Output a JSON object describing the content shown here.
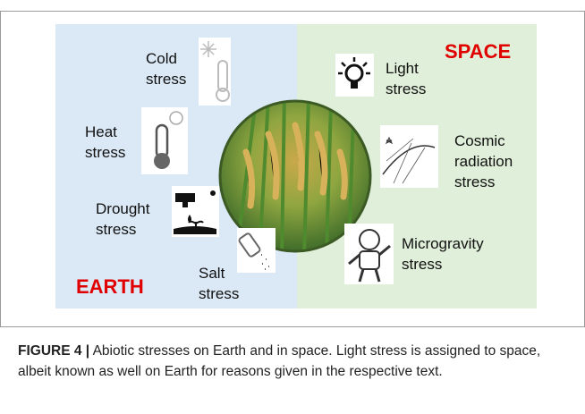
{
  "figure": {
    "earth": {
      "title": "EARTH",
      "stresses": [
        {
          "lines": [
            "Cold",
            "stress"
          ]
        },
        {
          "lines": [
            "Heat",
            "stress"
          ]
        },
        {
          "lines": [
            "Drought",
            "stress"
          ]
        },
        {
          "lines": [
            "Salt",
            "stress"
          ]
        }
      ]
    },
    "space": {
      "title": "SPACE",
      "stresses": [
        {
          "lines": [
            "Light",
            "stress"
          ]
        },
        {
          "lines": [
            "Cosmic",
            "radiation",
            "stress"
          ]
        },
        {
          "lines": [
            "Microgravity",
            "stress"
          ]
        }
      ]
    }
  },
  "caption": {
    "label": "FIGURE 4 |",
    "text": "Abiotic stresses on Earth and in space. Light stress is assigned to space, albeit known as well on Earth for reasons given in the respective text."
  }
}
